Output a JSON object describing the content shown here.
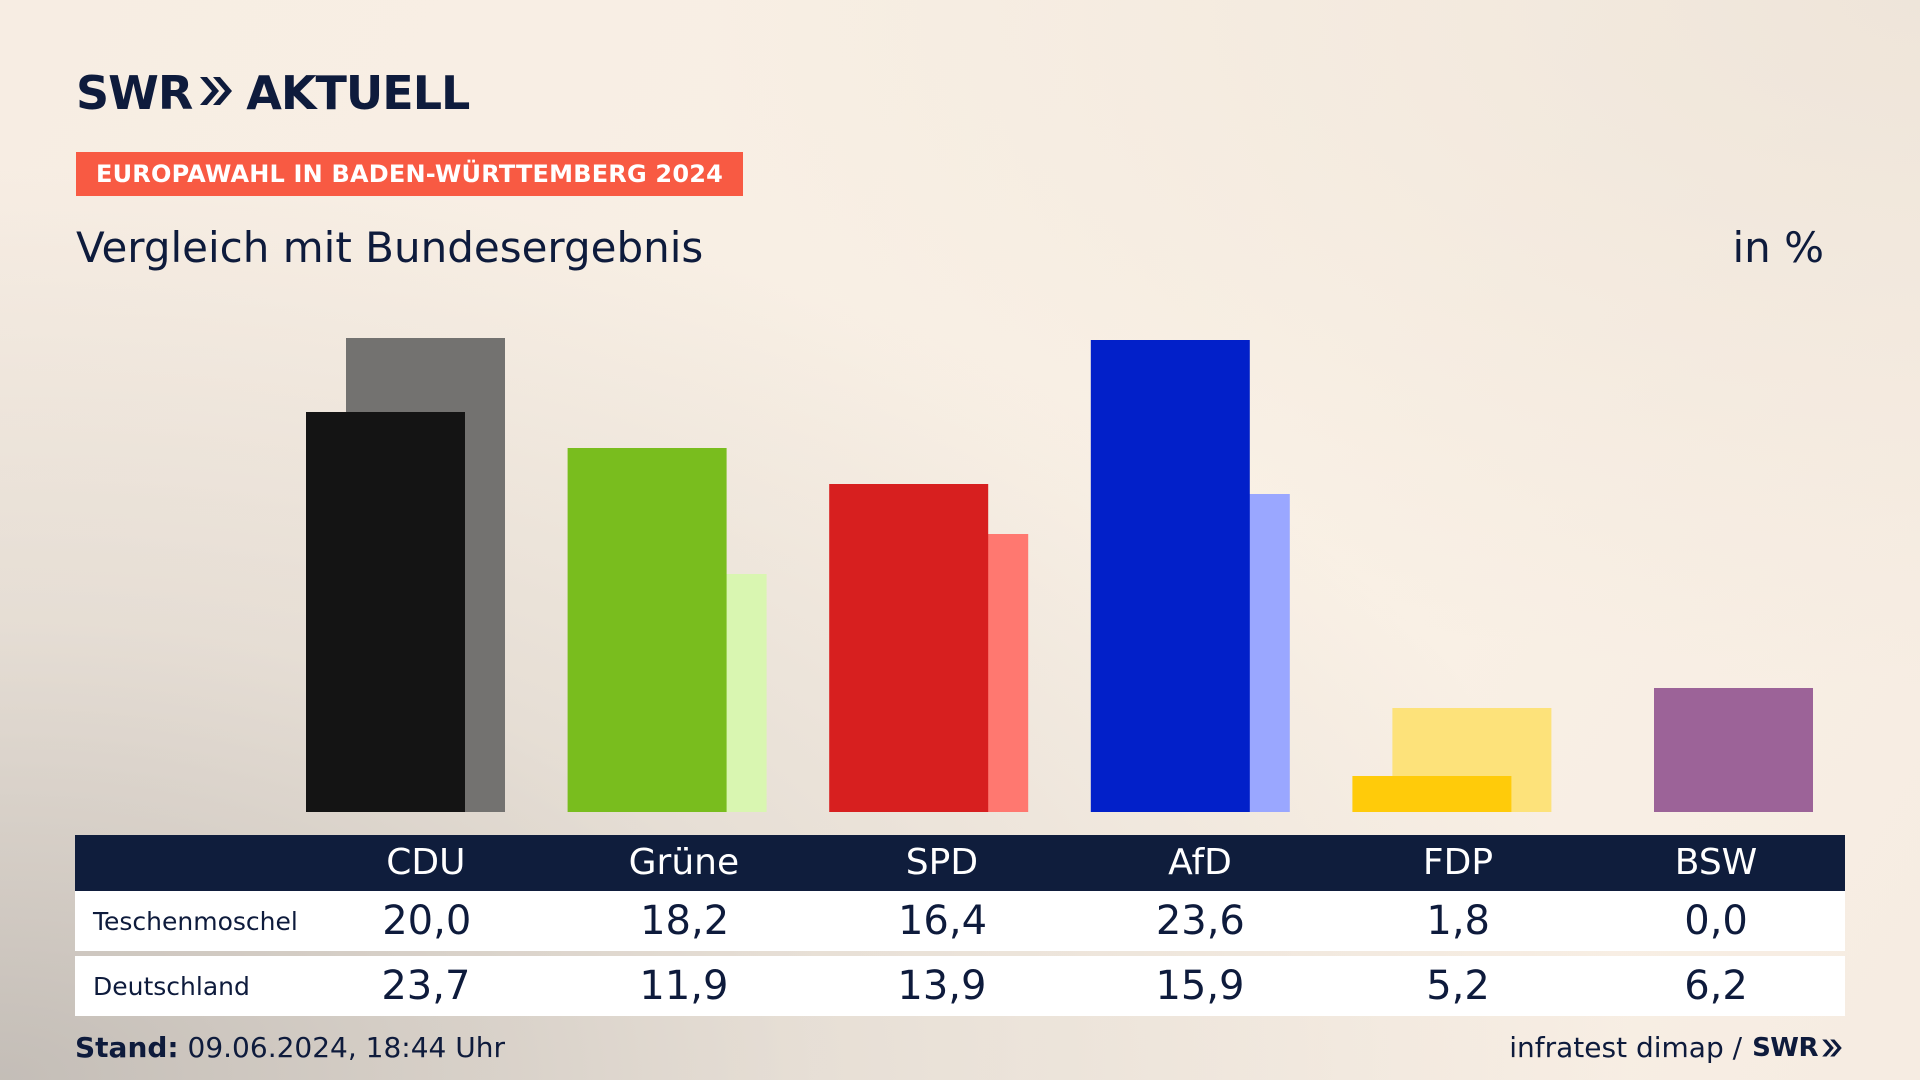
{
  "brand": {
    "swr": "SWR",
    "aktuell": "AKTUELL"
  },
  "badge": "EUROPAWAHL IN BADEN-WÜRTTEMBERG 2024",
  "subtitle": "Vergleich mit Bundesergebnis",
  "unit": "in %",
  "table": {
    "row_labels": [
      "Teschenmoschel",
      "Deutschland"
    ]
  },
  "footer": {
    "stand_label": "Stand:",
    "stand_value": "09.06.2024, 18:44 Uhr",
    "source": "infratest dimap /",
    "source_brand": "SWR"
  },
  "chart_data": {
    "type": "bar",
    "title": "Vergleich mit Bundesergebnis",
    "ylabel": "in %",
    "categories": [
      "CDU",
      "Grüne",
      "SPD",
      "AfD",
      "FDP",
      "BSW"
    ],
    "series": [
      {
        "name": "Teschenmoschel",
        "values": [
          20.0,
          18.2,
          16.4,
          23.6,
          1.8,
          0.0
        ],
        "labels": [
          "20,0",
          "18,2",
          "16,4",
          "23,6",
          "1,8",
          "0,0"
        ],
        "colors": [
          "#141414",
          "#79bd1e",
          "#d71f1f",
          "#0220c9",
          "#ffcb0a",
          "#9c6398"
        ]
      },
      {
        "name": "Deutschland",
        "values": [
          23.7,
          11.9,
          13.9,
          15.9,
          5.2,
          6.2
        ],
        "labels": [
          "23,7",
          "11,9",
          "13,9",
          "15,9",
          "5,2",
          "6,2"
        ],
        "colors": [
          "#737270",
          "#d9f6b1",
          "#ff7870",
          "#9aa7ff",
          "#fde27a",
          "#9c6398"
        ]
      }
    ],
    "ylim": [
      0,
      25
    ]
  }
}
